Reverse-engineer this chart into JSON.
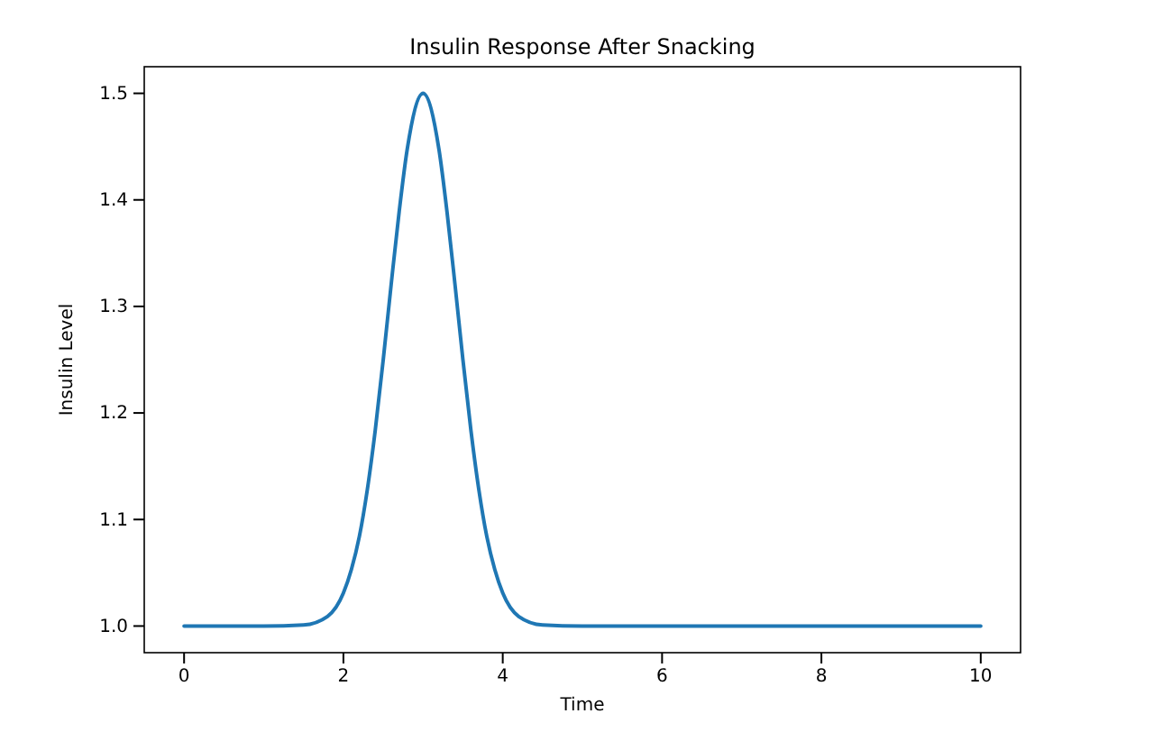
{
  "chart_data": {
    "type": "line",
    "title": "Insulin Response After Snacking",
    "xlabel": "Time",
    "ylabel": "Insulin Level",
    "x": [
      0,
      1,
      1.5,
      1.8,
      2,
      2.1,
      2.2,
      2.3,
      2.4,
      2.5,
      2.6,
      2.7,
      2.8,
      3,
      3.2,
      3.3,
      3.4,
      3.5,
      3.6,
      3.7,
      3.8,
      3.9,
      4,
      4.2,
      4.5,
      5,
      6,
      8,
      10
    ],
    "series": [
      {
        "color": "#1f77b4",
        "values": [
          1.0,
          1.0,
          1.001,
          1.009,
          1.031,
          1.053,
          1.084,
          1.128,
          1.184,
          1.25,
          1.321,
          1.389,
          1.447,
          1.5,
          1.447,
          1.389,
          1.321,
          1.25,
          1.184,
          1.128,
          1.084,
          1.053,
          1.031,
          1.009,
          1.001,
          1.0,
          1.0,
          1.0,
          1.0
        ]
      }
    ],
    "xlim": [
      -0.5,
      10.5
    ],
    "ylim": [
      0.975,
      1.525
    ],
    "xticks": [
      0,
      2,
      4,
      6,
      8,
      10
    ],
    "yticks": [
      {
        "value": 1.0,
        "label": "1.0"
      },
      {
        "value": 1.1,
        "label": "1.1"
      },
      {
        "value": 1.2,
        "label": "1.2"
      },
      {
        "value": 1.3,
        "label": "1.3"
      },
      {
        "value": 1.4,
        "label": "1.4"
      },
      {
        "value": 1.5,
        "label": "1.5"
      }
    ],
    "grid": false,
    "marker": "none",
    "line_style": "solid"
  }
}
